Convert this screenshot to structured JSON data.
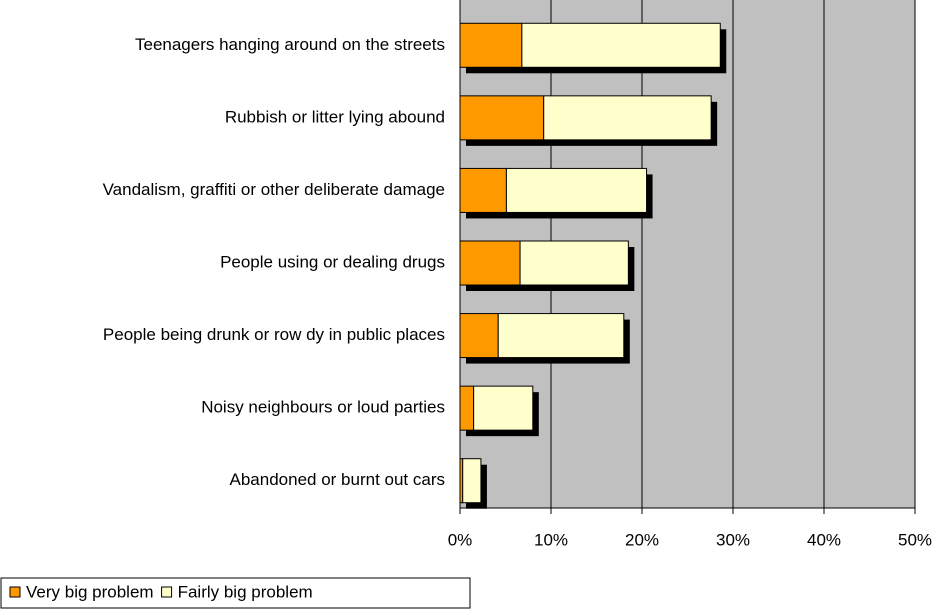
{
  "chart_data": {
    "type": "stacked-bar-horizontal",
    "categories": [
      "Teenagers hanging around on the streets",
      "Rubbish or litter lying abound",
      "Vandalism, graffiti or other deliberate damage",
      "People using or dealing drugs",
      "People being drunk or row dy in public places",
      "Noisy neighbours or loud parties",
      "Abandoned or burnt out cars"
    ],
    "series": [
      {
        "name": "Very big problem",
        "color": "#ff9900",
        "values": [
          6.8,
          9.2,
          5.1,
          6.6,
          4.2,
          1.5,
          0.3
        ]
      },
      {
        "name": "Fairly big problem",
        "color": "#ffffcc",
        "values": [
          21.8,
          18.4,
          15.4,
          11.9,
          13.8,
          6.5,
          2.0
        ]
      }
    ],
    "xlim": [
      0,
      50
    ],
    "xticks": [
      {
        "value": 0,
        "label": "0%"
      },
      {
        "value": 10,
        "label": "10%"
      },
      {
        "value": 20,
        "label": "20%"
      },
      {
        "value": 30,
        "label": "30%"
      },
      {
        "value": 40,
        "label": "40%"
      },
      {
        "value": 50,
        "label": "50%"
      }
    ],
    "grid": true,
    "plot_background": "#c0c0c0",
    "legend": "bottom-left"
  }
}
